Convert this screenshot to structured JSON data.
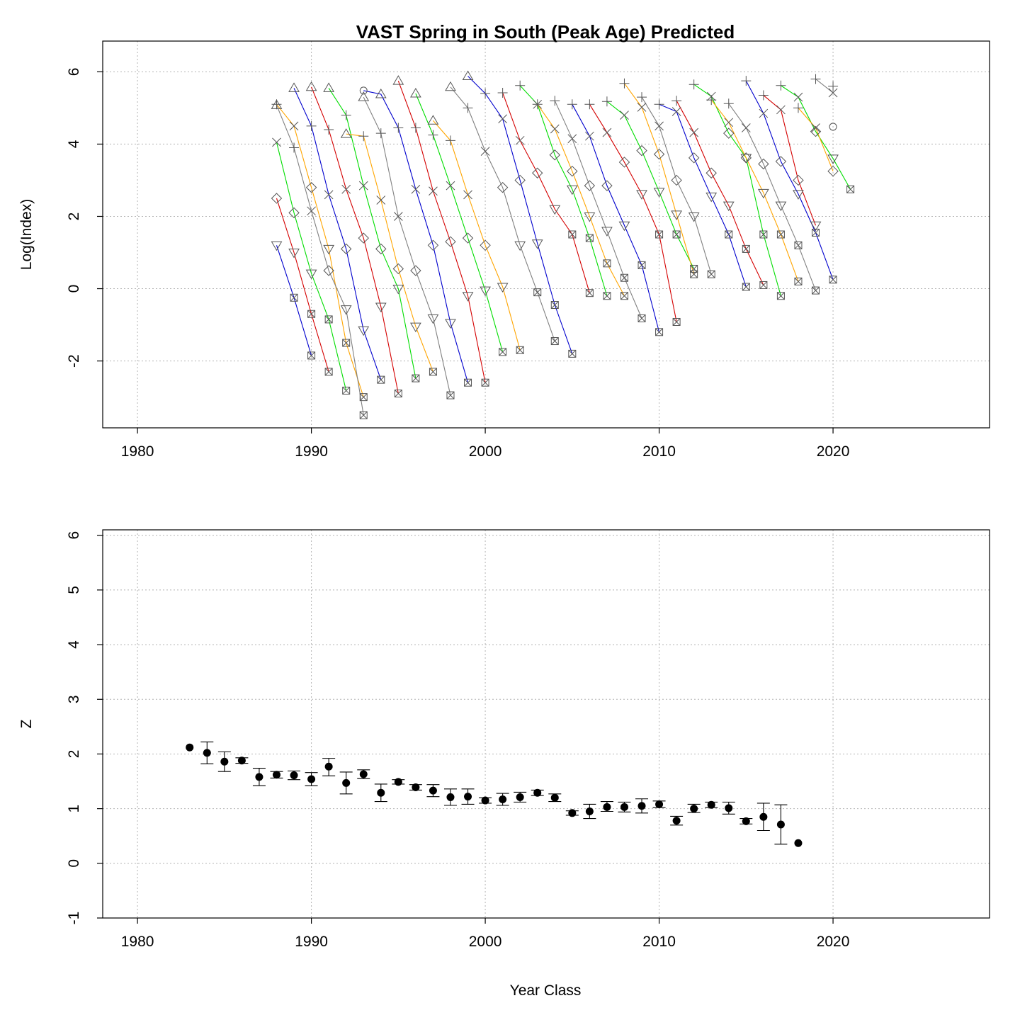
{
  "chart_data": [
    {
      "type": "line",
      "title": "VAST Spring in South (Peak Age) Predicted",
      "xlabel": "",
      "ylabel": "Log(Index)",
      "xlim": [
        1978,
        2029
      ],
      "ylim": [
        -3.85,
        6.85
      ],
      "xticks": [
        1980,
        1990,
        2000,
        2010,
        2020
      ],
      "yticks": [
        -2,
        0,
        2,
        4,
        6
      ],
      "grid": true,
      "age_markers": [
        "circle",
        "triangle-up",
        "plus",
        "cross",
        "diamond",
        "triangle-down",
        "square-x"
      ],
      "marker_color": "#555555",
      "cohort_colors": [
        "#0000cd",
        "#d40000",
        "#00dd00",
        "#ffa500",
        "#808080"
      ],
      "cohorts": [
        {
          "year_class": 1983,
          "start_age": 5,
          "values": [
            1.2,
            -0.25,
            -1.85
          ]
        },
        {
          "year_class": 1984,
          "start_age": 4,
          "values": [
            2.5,
            1.0,
            -0.7,
            -2.3
          ]
        },
        {
          "year_class": 1985,
          "start_age": 3,
          "values": [
            4.05,
            2.1,
            0.42,
            -0.85,
            -2.82
          ]
        },
        {
          "year_class": 1986,
          "start_age": 2,
          "values": [
            5.1,
            4.5,
            2.8,
            1.1,
            -1.5,
            -3.0
          ]
        },
        {
          "year_class": 1987,
          "start_age": 1,
          "values": [
            5.08,
            3.9,
            2.15,
            0.5,
            -0.57,
            -3.5
          ]
        },
        {
          "year_class": 1988,
          "start_age": 1,
          "values": [
            5.55,
            4.5,
            2.6,
            1.1,
            -1.15,
            -2.52
          ]
        },
        {
          "year_class": 1989,
          "start_age": 1,
          "values": [
            5.58,
            4.4,
            2.75,
            1.4,
            -0.5,
            -2.9
          ]
        },
        {
          "year_class": 1990,
          "start_age": 1,
          "values": [
            5.55,
            4.8,
            2.85,
            1.1,
            0.0,
            -2.48
          ]
        },
        {
          "year_class": 1991,
          "start_age": 1,
          "values": [
            4.28,
            4.22,
            2.45,
            0.55,
            -1.05,
            -2.3
          ]
        },
        {
          "year_class": 1992,
          "start_age": 1,
          "values": [
            5.3,
            4.3,
            2.0,
            0.5,
            -0.82,
            -2.95
          ]
        },
        {
          "year_class": 1993,
          "start_age": 0,
          "values": [
            5.48,
            5.38,
            4.45,
            2.75,
            1.2,
            -0.95,
            -2.6
          ]
        },
        {
          "year_class": 1994,
          "start_age": 1,
          "values": [
            5.75,
            4.45,
            2.7,
            1.3,
            -0.2,
            -2.6
          ]
        },
        {
          "year_class": 1995,
          "start_age": 1,
          "values": [
            5.4,
            4.25,
            2.85,
            1.4,
            -0.05,
            -1.75
          ]
        },
        {
          "year_class": 1996,
          "start_age": 1,
          "values": [
            4.65,
            4.1,
            2.6,
            1.2,
            0.05,
            -1.7
          ]
        },
        {
          "year_class": 1997,
          "start_age": 1,
          "values": [
            5.58,
            5.0,
            3.8,
            2.8,
            1.2,
            -0.1,
            -1.45
          ]
        },
        {
          "year_class": 1998,
          "start_age": 1,
          "values": [
            5.88,
            5.4,
            4.7,
            3.0,
            1.25,
            -0.45,
            -1.8
          ]
        },
        {
          "year_class": 1999,
          "start_age": 2,
          "values": [
            5.42,
            4.1,
            3.2,
            2.2,
            1.5,
            -0.12
          ]
        },
        {
          "year_class": 2000,
          "start_age": 2,
          "values": [
            5.62,
            5.1,
            3.7,
            2.75,
            1.4,
            -0.2
          ]
        },
        {
          "year_class": 2001,
          "start_age": 2,
          "values": [
            5.1,
            4.42,
            3.25,
            2.0,
            0.7,
            -0.2
          ]
        },
        {
          "year_class": 2002,
          "start_age": 2,
          "values": [
            5.2,
            4.15,
            2.85,
            1.6,
            0.3,
            -0.82
          ]
        },
        {
          "year_class": 2003,
          "start_age": 2,
          "values": [
            5.1,
            4.22,
            2.85,
            1.75,
            0.65,
            -1.2
          ]
        },
        {
          "year_class": 2004,
          "start_age": 2,
          "values": [
            5.1,
            4.32,
            3.5,
            2.62,
            1.5,
            -0.92
          ]
        },
        {
          "year_class": 2005,
          "start_age": 2,
          "values": [
            5.18,
            4.8,
            3.82,
            2.68,
            1.5,
            0.55
          ]
        },
        {
          "year_class": 2006,
          "start_age": 2,
          "values": [
            5.68,
            5.02,
            3.72,
            2.05,
            0.4
          ]
        },
        {
          "year_class": 2007,
          "start_age": 2,
          "values": [
            5.3,
            4.5,
            3.0,
            2.0,
            0.4
          ]
        },
        {
          "year_class": 2008,
          "start_age": 2,
          "values": [
            5.1,
            4.9,
            3.62,
            2.55,
            1.5,
            0.05
          ]
        },
        {
          "year_class": 2009,
          "start_age": 2,
          "values": [
            5.2,
            4.32,
            3.2,
            2.3,
            1.1,
            0.1
          ]
        },
        {
          "year_class": 2010,
          "start_age": 2,
          "values": [
            5.65,
            5.32,
            4.3,
            3.62,
            1.5,
            -0.2
          ]
        },
        {
          "year_class": 2011,
          "start_age": 2,
          "values": [
            5.22,
            4.6,
            3.62,
            2.65,
            1.5,
            0.2
          ]
        },
        {
          "year_class": 2012,
          "start_age": 2,
          "values": [
            5.12,
            4.45,
            3.45,
            2.3,
            1.2,
            -0.05
          ]
        },
        {
          "year_class": 2013,
          "start_age": 2,
          "values": [
            5.75,
            4.85,
            3.52,
            2.62,
            1.55,
            0.25
          ]
        },
        {
          "year_class": 2014,
          "start_age": 2,
          "values": [
            5.35,
            4.95,
            3.0,
            1.75
          ]
        },
        {
          "year_class": 2015,
          "start_age": 2,
          "values": [
            5.62,
            5.3,
            4.35,
            3.6,
            2.75
          ]
        },
        {
          "year_class": 2016,
          "start_age": 2,
          "values": [
            5.0,
            4.45,
            3.25
          ]
        },
        {
          "year_class": 2017,
          "start_age": 2,
          "values": [
            5.8,
            5.42
          ]
        },
        {
          "year_class": 2018,
          "start_age": 2,
          "values": [
            5.6
          ]
        }
      ],
      "extra_points": [
        {
          "x": 2020,
          "y": 4.48,
          "marker": "circle"
        }
      ]
    },
    {
      "type": "scatter",
      "title": "",
      "xlabel": "Year Class",
      "ylabel": "Z",
      "xlim": [
        1978,
        2029
      ],
      "ylim": [
        -1,
        6.1
      ],
      "xticks": [
        1980,
        1990,
        2000,
        2010,
        2020
      ],
      "yticks": [
        -1,
        0,
        1,
        2,
        3,
        4,
        5,
        6
      ],
      "grid": true,
      "points": [
        {
          "x": 1983,
          "y": 2.12,
          "lo": 2.12,
          "hi": 2.12
        },
        {
          "x": 1984,
          "y": 2.02,
          "lo": 1.82,
          "hi": 2.22
        },
        {
          "x": 1985,
          "y": 1.86,
          "lo": 1.68,
          "hi": 2.04
        },
        {
          "x": 1986,
          "y": 1.88,
          "lo": 1.83,
          "hi": 1.93
        },
        {
          "x": 1987,
          "y": 1.58,
          "lo": 1.42,
          "hi": 1.74
        },
        {
          "x": 1988,
          "y": 1.62,
          "lo": 1.56,
          "hi": 1.68
        },
        {
          "x": 1989,
          "y": 1.61,
          "lo": 1.53,
          "hi": 1.69
        },
        {
          "x": 1990,
          "y": 1.54,
          "lo": 1.42,
          "hi": 1.66
        },
        {
          "x": 1991,
          "y": 1.77,
          "lo": 1.6,
          "hi": 1.92
        },
        {
          "x": 1992,
          "y": 1.47,
          "lo": 1.27,
          "hi": 1.67
        },
        {
          "x": 1993,
          "y": 1.63,
          "lo": 1.55,
          "hi": 1.71
        },
        {
          "x": 1994,
          "y": 1.29,
          "lo": 1.13,
          "hi": 1.45
        },
        {
          "x": 1995,
          "y": 1.49,
          "lo": 1.45,
          "hi": 1.53
        },
        {
          "x": 1996,
          "y": 1.39,
          "lo": 1.34,
          "hi": 1.44
        },
        {
          "x": 1997,
          "y": 1.33,
          "lo": 1.22,
          "hi": 1.44
        },
        {
          "x": 1998,
          "y": 1.21,
          "lo": 1.06,
          "hi": 1.36
        },
        {
          "x": 1999,
          "y": 1.22,
          "lo": 1.08,
          "hi": 1.36
        },
        {
          "x": 2000,
          "y": 1.15,
          "lo": 1.1,
          "hi": 1.2
        },
        {
          "x": 2001,
          "y": 1.17,
          "lo": 1.06,
          "hi": 1.28
        },
        {
          "x": 2002,
          "y": 1.21,
          "lo": 1.12,
          "hi": 1.3
        },
        {
          "x": 2003,
          "y": 1.29,
          "lo": 1.24,
          "hi": 1.34
        },
        {
          "x": 2004,
          "y": 1.2,
          "lo": 1.13,
          "hi": 1.27
        },
        {
          "x": 2005,
          "y": 0.92,
          "lo": 0.88,
          "hi": 0.96
        },
        {
          "x": 2006,
          "y": 0.95,
          "lo": 0.82,
          "hi": 1.08
        },
        {
          "x": 2007,
          "y": 1.03,
          "lo": 0.95,
          "hi": 1.13
        },
        {
          "x": 2008,
          "y": 1.03,
          "lo": 0.94,
          "hi": 1.12
        },
        {
          "x": 2009,
          "y": 1.05,
          "lo": 0.92,
          "hi": 1.18
        },
        {
          "x": 2010,
          "y": 1.08,
          "lo": 1.02,
          "hi": 1.14
        },
        {
          "x": 2011,
          "y": 0.78,
          "lo": 0.7,
          "hi": 0.86
        },
        {
          "x": 2012,
          "y": 1.0,
          "lo": 0.93,
          "hi": 1.08
        },
        {
          "x": 2013,
          "y": 1.07,
          "lo": 1.02,
          "hi": 1.12
        },
        {
          "x": 2014,
          "y": 1.01,
          "lo": 0.9,
          "hi": 1.12
        },
        {
          "x": 2015,
          "y": 0.77,
          "lo": 0.72,
          "hi": 0.82
        },
        {
          "x": 2016,
          "y": 0.85,
          "lo": 0.6,
          "hi": 1.1
        },
        {
          "x": 2017,
          "y": 0.71,
          "lo": 0.35,
          "hi": 1.07
        },
        {
          "x": 2018,
          "y": 0.37,
          "lo": 0.37,
          "hi": 0.37
        }
      ]
    }
  ]
}
